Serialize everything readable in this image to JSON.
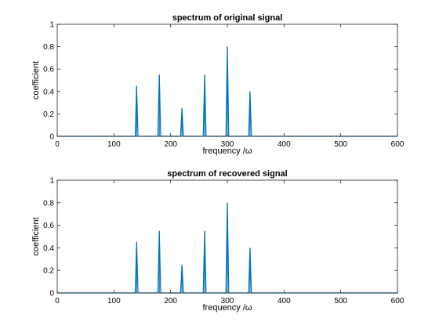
{
  "chart_data": [
    {
      "type": "line",
      "title": "spectrum of original signal",
      "xlabel": "frequency /ω",
      "ylabel": "coefficient",
      "xlim": [
        0,
        600
      ],
      "ylim": [
        0,
        1
      ],
      "xticks": [
        0,
        100,
        200,
        300,
        400,
        500,
        600
      ],
      "yticks": [
        0,
        0.2,
        0.4,
        0.6,
        0.8,
        1
      ],
      "xtick_labels": [
        "0",
        "100",
        "200",
        "300",
        "400",
        "500",
        "600"
      ],
      "ytick_labels": [
        "0",
        "0.2",
        "0.4",
        "0.6",
        "0.8",
        "1"
      ],
      "grid": false,
      "color": "#0072BD",
      "spikes": [
        {
          "x": 140,
          "y": 0.45
        },
        {
          "x": 180,
          "y": 0.55
        },
        {
          "x": 220,
          "y": 0.25
        },
        {
          "x": 260,
          "y": 0.55
        },
        {
          "x": 300,
          "y": 0.8
        },
        {
          "x": 340,
          "y": 0.4
        }
      ]
    },
    {
      "type": "line",
      "title": "spectrum of recovered signal",
      "xlabel": "frequency /ω",
      "ylabel": "coefficient",
      "xlim": [
        0,
        600
      ],
      "ylim": [
        0,
        1
      ],
      "xticks": [
        0,
        100,
        200,
        300,
        400,
        500,
        600
      ],
      "yticks": [
        0,
        0.2,
        0.4,
        0.6,
        0.8,
        1
      ],
      "xtick_labels": [
        "0",
        "100",
        "200",
        "300",
        "400",
        "500",
        "600"
      ],
      "ytick_labels": [
        "0",
        "0.2",
        "0.4",
        "0.6",
        "0.8",
        "1"
      ],
      "grid": false,
      "color": "#0072BD",
      "spikes": [
        {
          "x": 140,
          "y": 0.45
        },
        {
          "x": 180,
          "y": 0.55
        },
        {
          "x": 220,
          "y": 0.25
        },
        {
          "x": 260,
          "y": 0.55
        },
        {
          "x": 300,
          "y": 0.8
        },
        {
          "x": 340,
          "y": 0.4
        }
      ]
    }
  ]
}
